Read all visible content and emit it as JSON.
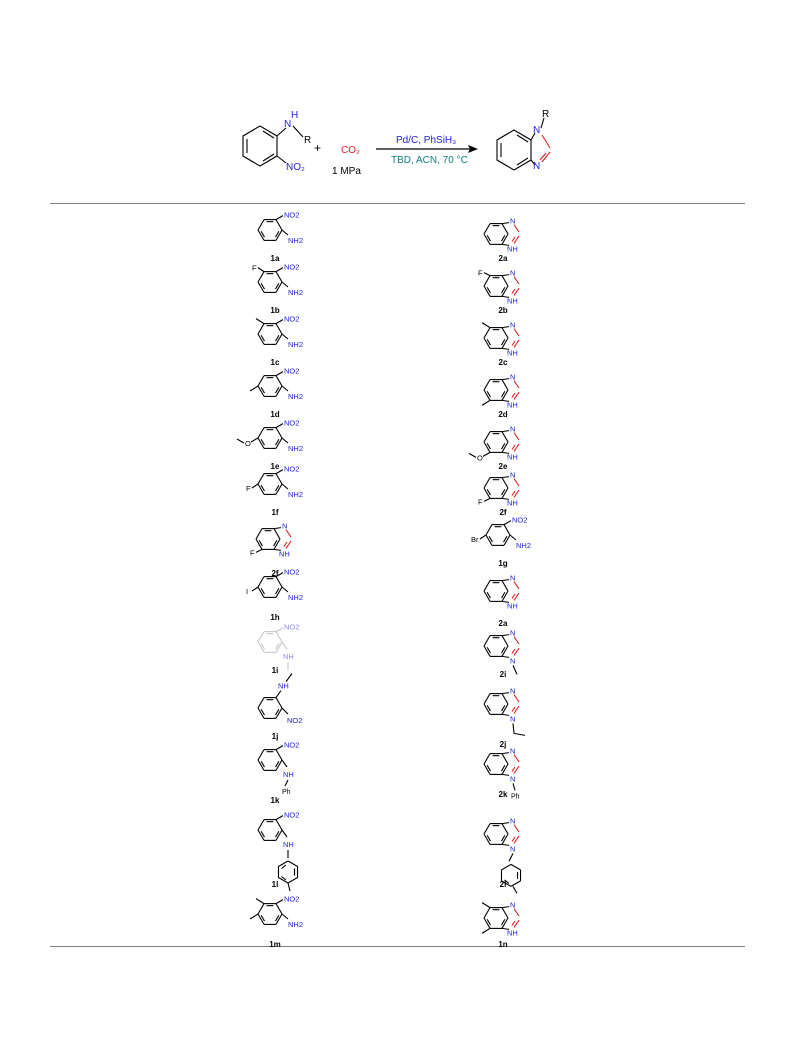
{
  "scheme": {
    "sm_nh": "N",
    "sm_h": "H",
    "sm_r": "R",
    "sm_no2": "NO₂",
    "plus": "+",
    "reagent": "CO₂",
    "pressure": "1 MPa",
    "cond_top": "Pd/C, PhSiH₃",
    "cond_bottom": "TBD, ACN, 70 °C",
    "prod_n1": "N",
    "prod_n3": "N",
    "prod_r": "R"
  },
  "colors": {
    "blue": "#2020e0",
    "red": "#e02020",
    "teal": "#108080",
    "grey_rule": "#808080"
  },
  "compounds": [
    {
      "id": "c1a",
      "kind": "aniline",
      "r4": "",
      "r5": "",
      "amine": "NH2",
      "label": "1a"
    },
    {
      "id": "c2a",
      "kind": "benzimidazole",
      "r5": "",
      "r6": "",
      "n1": "H",
      "label": "2a"
    },
    {
      "id": "c1b",
      "kind": "aniline",
      "r4": "F",
      "r5": "",
      "amine": "NH2",
      "label": "1b"
    },
    {
      "id": "c2b",
      "kind": "benzimidazole",
      "r5": "F",
      "r6": "",
      "n1": "H",
      "label": "2b"
    },
    {
      "id": "c1c",
      "kind": "aniline",
      "r4": "Me",
      "r5": "",
      "amine": "NH2",
      "label": "1c"
    },
    {
      "id": "c2c",
      "kind": "benzimidazole",
      "r5": "Me",
      "r6": "",
      "n1": "H",
      "label": "2c"
    },
    {
      "id": "c1d",
      "kind": "aniline",
      "r4": "",
      "r5": "Me",
      "amine": "NH2",
      "label": "1d"
    },
    {
      "id": "c2d",
      "kind": "benzimidazole",
      "r5": "",
      "r6": "Me",
      "n1": "H",
      "label": "2d"
    },
    {
      "id": "c1e",
      "kind": "aniline",
      "r4": "",
      "r5": "OMe",
      "amine": "NH2",
      "label": "1e"
    },
    {
      "id": "c2e",
      "kind": "benzimidazole",
      "r5": "",
      "r6": "OMe",
      "n1": "H",
      "label": "2e"
    },
    {
      "id": "c1f",
      "kind": "aniline",
      "r4": "",
      "r5": "F",
      "amine": "NH2",
      "label": "1f"
    },
    {
      "id": "c2f-right",
      "kind": "benzimidazole",
      "r5": "",
      "r6": "F",
      "n1": "H",
      "label": "2f"
    },
    {
      "id": "c2f-left",
      "kind": "benzimidazole",
      "r5": "",
      "r6": "F",
      "n1": "H",
      "label": "2f"
    },
    {
      "id": "c1g",
      "kind": "aniline",
      "r4": "",
      "r5": "Br",
      "amine": "NH2",
      "label": "1g"
    },
    {
      "id": "c1h",
      "kind": "aniline",
      "r4": "",
      "r5": "I",
      "amine": "NH2",
      "label": "1h"
    },
    {
      "id": "c2a-dup",
      "kind": "benzimidazole",
      "r5": "",
      "r6": "",
      "n1": "H",
      "label": "2a"
    },
    {
      "id": "c1i",
      "kind": "aniline",
      "r4": "",
      "r5": "",
      "amine": "NHMe",
      "faded": true,
      "label": "1i"
    },
    {
      "id": "c2i",
      "kind": "benzimidazole",
      "r5": "",
      "r6": "",
      "n1": "Me",
      "label": "2i"
    },
    {
      "id": "c1j",
      "kind": "aniline-flip",
      "r4": "",
      "r5": "",
      "amine": "NHEt",
      "label": "1j"
    },
    {
      "id": "c2j",
      "kind": "benzimidazole",
      "r5": "",
      "r6": "",
      "n1": "Et",
      "label": "2j"
    },
    {
      "id": "c1k",
      "kind": "aniline",
      "r4": "",
      "r5": "",
      "amine": "NHPh",
      "label": "1k"
    },
    {
      "id": "c2k",
      "kind": "benzimidazole",
      "r5": "",
      "r6": "",
      "n1": "Ph",
      "label": "2k"
    },
    {
      "id": "c1l",
      "kind": "aniline",
      "r4": "",
      "r5": "",
      "amine": "NHTol",
      "label": "1l"
    },
    {
      "id": "c2l",
      "kind": "benzimidazole",
      "r5": "",
      "r6": "",
      "n1": "Tol",
      "label": "2l"
    },
    {
      "id": "c1m",
      "kind": "aniline",
      "r4": "Me",
      "r5": "Me",
      "amine": "NH2",
      "label": "1m"
    },
    {
      "id": "c1n",
      "kind": "benzimidazole",
      "r5": "Me",
      "r6": "Me",
      "n1": "H",
      "label": "1n"
    }
  ],
  "atom_text": {
    "nitro": "NO2",
    "amine": "NH2",
    "nh": "NH",
    "n": "N",
    "h": "H",
    "f": "F",
    "br": "Br",
    "i": "I",
    "ph": "Ph",
    "o": "O"
  }
}
